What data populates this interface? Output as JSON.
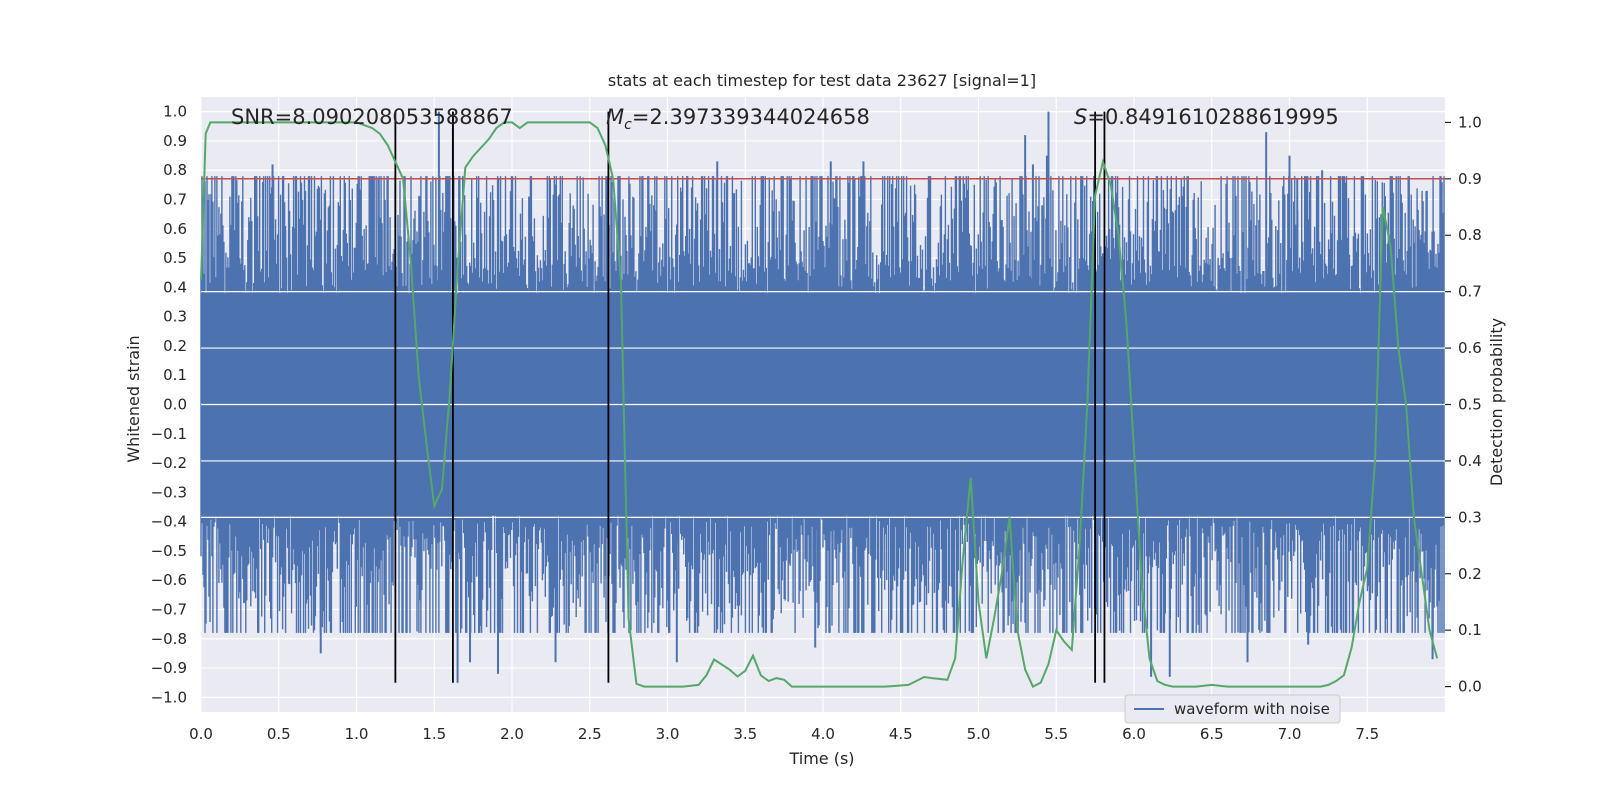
{
  "chart_data": {
    "type": "line",
    "title": "stats at each timestep for test data 23627 [signal=1]",
    "xlabel": "Time (s)",
    "ylabel": "Whitened strain",
    "y2label": "Detection probability",
    "xlim": [
      0.0,
      8.0
    ],
    "ylim": [
      -1.05,
      1.05
    ],
    "y2lim": [
      -0.045,
      1.045
    ],
    "xticks": [
      "0.0",
      "0.5",
      "1.0",
      "1.5",
      "2.0",
      "2.5",
      "3.0",
      "3.5",
      "4.0",
      "4.5",
      "5.0",
      "5.5",
      "6.0",
      "6.5",
      "7.0",
      "7.5"
    ],
    "yticks": [
      "1.0",
      "0.9",
      "0.8",
      "0.7",
      "0.6",
      "0.5",
      "0.4",
      "0.3",
      "0.2",
      "0.1",
      "0.0",
      "-0.1",
      "-0.2",
      "-0.3",
      "-0.4",
      "-0.5",
      "-0.6",
      "-0.7",
      "-0.8",
      "-0.9",
      "-1.0"
    ],
    "y2ticks": [
      "1.0",
      "0.9",
      "0.8",
      "0.7",
      "0.6",
      "0.5",
      "0.4",
      "0.3",
      "0.2",
      "0.1",
      "0.0"
    ],
    "grid": true,
    "legend": {
      "position": "lower-right",
      "entries": [
        "waveform with noise"
      ]
    },
    "annotations": {
      "snr": "SNR=8.090208053588867",
      "mc": "=2.397339344024658",
      "mc_symbol": "M",
      "mc_sub": "c",
      "s": "=0.8491610288619995",
      "s_symbol": "S"
    },
    "threshold_line": {
      "value": 0.9,
      "color": "#c44e52"
    },
    "vertical_lines": [
      1.25,
      1.62,
      2.62,
      5.75,
      5.81
    ],
    "vertical_lines_ylim": [
      -0.95,
      1.0
    ],
    "colors": {
      "waveform": "#4c72b0",
      "probability": "#55a868",
      "background": "#eaeaf2",
      "vertical": "#000000"
    },
    "series": [
      {
        "name": "waveform with noise",
        "type": "noise-waveform",
        "x_range": [
          0.0,
          8.0
        ],
        "envelope": {
          "positive_max": 1.0,
          "negative_min": -0.95,
          "typical_peak": 0.55
        },
        "peaks": [
          {
            "x": 0.46,
            "y": 0.82
          },
          {
            "x": 0.45,
            "y": 0.72
          },
          {
            "x": 1.53,
            "y": 1.0
          },
          {
            "x": 1.62,
            "y": 1.0
          },
          {
            "x": 1.57,
            "y": 0.62
          },
          {
            "x": 1.65,
            "y": -0.95
          },
          {
            "x": 1.91,
            "y": -0.92
          },
          {
            "x": 2.28,
            "y": 0.72
          },
          {
            "x": 2.32,
            "y": 0.62
          },
          {
            "x": 0.77,
            "y": -0.85
          },
          {
            "x": 1.73,
            "y": -0.88
          },
          {
            "x": 2.28,
            "y": -0.88
          },
          {
            "x": 3.32,
            "y": 0.83
          },
          {
            "x": 2.11,
            "y": 0.71
          },
          {
            "x": 4.05,
            "y": 0.83
          },
          {
            "x": 3.06,
            "y": -0.88
          },
          {
            "x": 3.95,
            "y": -0.83
          },
          {
            "x": 4.26,
            "y": 0.83
          },
          {
            "x": 5.3,
            "y": 0.92
          },
          {
            "x": 5.44,
            "y": 0.85
          },
          {
            "x": 5.45,
            "y": 1.0
          },
          {
            "x": 5.35,
            "y": 0.82
          },
          {
            "x": 5.41,
            "y": 0.68
          },
          {
            "x": 6.11,
            "y": -0.93
          },
          {
            "x": 6.23,
            "y": -0.93
          },
          {
            "x": 6.85,
            "y": 0.93
          },
          {
            "x": 7.0,
            "y": 0.85
          },
          {
            "x": 7.05,
            "y": 0.77
          },
          {
            "x": 7.21,
            "y": 0.8
          },
          {
            "x": 6.73,
            "y": -0.88
          },
          {
            "x": 7.12,
            "y": -0.82
          },
          {
            "x": 7.59,
            "y": 0.65
          },
          {
            "x": 7.92,
            "y": -0.87
          }
        ]
      },
      {
        "name": "detection probability",
        "axis": "y2",
        "x": [
          0.0,
          0.03,
          0.06,
          0.1,
          0.2,
          0.3,
          0.5,
          0.7,
          0.9,
          1.0,
          1.05,
          1.1,
          1.15,
          1.2,
          1.25,
          1.3,
          1.35,
          1.4,
          1.45,
          1.5,
          1.55,
          1.6,
          1.65,
          1.7,
          1.75,
          1.85,
          1.9,
          1.95,
          2.0,
          2.05,
          2.1,
          2.15,
          2.2,
          2.3,
          2.4,
          2.5,
          2.55,
          2.6,
          2.65,
          2.7,
          2.75,
          2.8,
          2.85,
          2.9,
          3.0,
          3.1,
          3.2,
          3.25,
          3.3,
          3.4,
          3.45,
          3.5,
          3.55,
          3.6,
          3.65,
          3.7,
          3.75,
          3.8,
          3.85,
          3.9,
          4.0,
          4.2,
          4.4,
          4.55,
          4.6,
          4.65,
          4.7,
          4.8,
          4.85,
          4.9,
          4.95,
          5.0,
          5.05,
          5.1,
          5.15,
          5.2,
          5.25,
          5.3,
          5.35,
          5.4,
          5.45,
          5.5,
          5.55,
          5.6,
          5.65,
          5.7,
          5.75,
          5.8,
          5.85,
          5.9,
          5.95,
          6.0,
          6.05,
          6.1,
          6.15,
          6.2,
          6.25,
          6.3,
          6.4,
          6.5,
          6.6,
          6.7,
          6.8,
          7.0,
          7.2,
          7.25,
          7.3,
          7.35,
          7.4,
          7.45,
          7.5,
          7.55,
          7.6,
          7.65,
          7.7,
          7.75,
          7.8,
          7.85,
          7.9,
          7.95
        ],
        "y": [
          0.72,
          0.98,
          1.0,
          1.0,
          1.0,
          1.0,
          1.0,
          1.0,
          1.0,
          1.0,
          0.995,
          0.99,
          0.98,
          0.96,
          0.93,
          0.9,
          0.75,
          0.55,
          0.43,
          0.32,
          0.35,
          0.52,
          0.74,
          0.92,
          0.94,
          0.97,
          0.99,
          1.0,
          1.0,
          0.99,
          1.0,
          1.0,
          1.0,
          1.0,
          1.0,
          1.0,
          0.99,
          0.96,
          0.9,
          0.72,
          0.12,
          0.005,
          0.0,
          0.0,
          0.0,
          0.0,
          0.003,
          0.02,
          0.048,
          0.03,
          0.018,
          0.028,
          0.055,
          0.02,
          0.01,
          0.015,
          0.012,
          0.0,
          0.0,
          0.0,
          0.0,
          0.0,
          0.0,
          0.003,
          0.01,
          0.017,
          0.015,
          0.012,
          0.05,
          0.23,
          0.37,
          0.15,
          0.05,
          0.12,
          0.2,
          0.3,
          0.1,
          0.03,
          0.0,
          0.007,
          0.04,
          0.1,
          0.08,
          0.065,
          0.25,
          0.5,
          0.87,
          0.93,
          0.89,
          0.8,
          0.65,
          0.42,
          0.18,
          0.05,
          0.01,
          0.003,
          0.0,
          0.0,
          0.0,
          0.003,
          0.0,
          0.0,
          0.0,
          0.0,
          0.0,
          0.003,
          0.01,
          0.02,
          0.07,
          0.15,
          0.21,
          0.4,
          0.85,
          0.78,
          0.6,
          0.5,
          0.3,
          0.2,
          0.1,
          0.05
        ]
      }
    ]
  }
}
